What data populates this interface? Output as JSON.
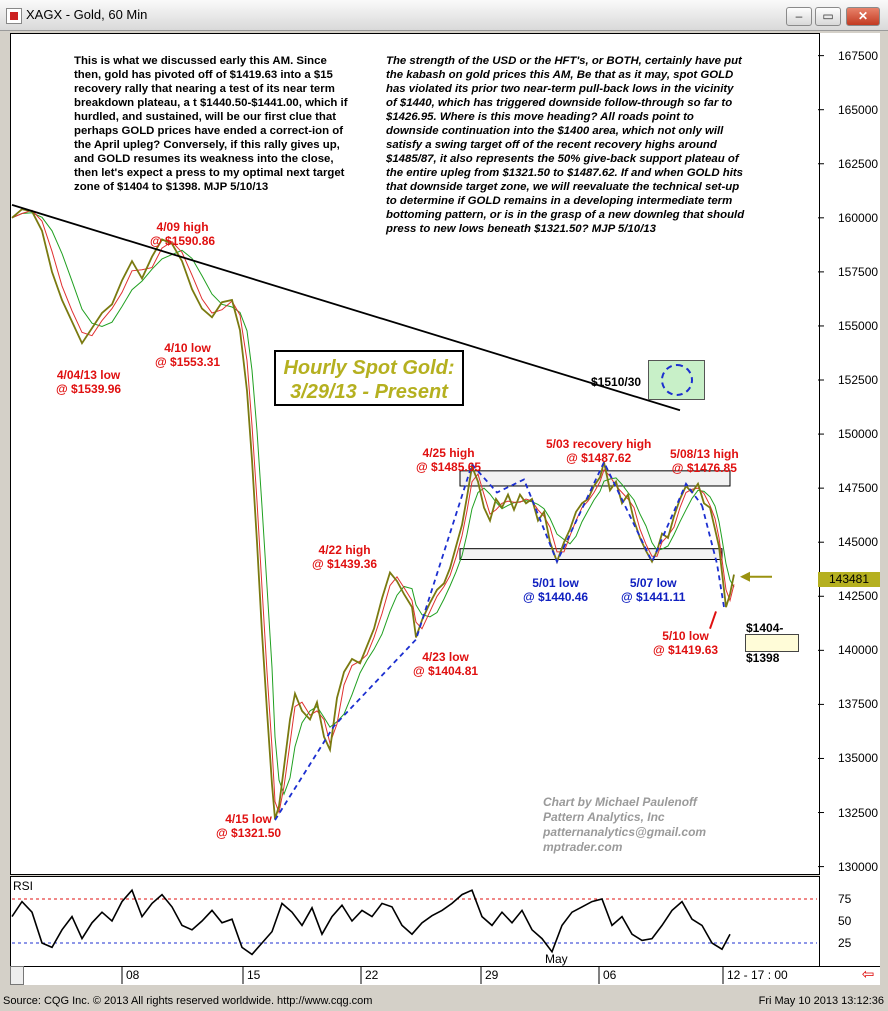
{
  "window": {
    "title": "XAGX - Gold, 60 Min",
    "buttons": {
      "minimize": "–",
      "restore": "▭",
      "close": "✕"
    },
    "mini_buttons": [
      "–",
      "▭",
      "✕"
    ]
  },
  "chart_data": {
    "type": "line",
    "title": "Hourly Spot Gold:",
    "subtitle": "3/29/13 - Present",
    "ylim": [
      1297.5,
      1685
    ],
    "y_ticks": [
      "167500",
      "165000",
      "162500",
      "160000",
      "157500",
      "155000",
      "152500",
      "150000",
      "147500",
      "145000",
      "142500",
      "140000",
      "137500",
      "135000",
      "132500",
      "130000"
    ],
    "y_tick_values": [
      1675,
      1650,
      1625,
      1600,
      1575,
      1550,
      1525,
      1500,
      1475,
      1450,
      1425,
      1400,
      1375,
      1350,
      1325,
      1300
    ],
    "x_labels": [
      "08",
      "15",
      "22",
      "29",
      "May",
      "06",
      "12 - 17 : 00"
    ],
    "last_price": "143481",
    "price_series": [
      [
        0,
        1600
      ],
      [
        10,
        1604
      ],
      [
        20,
        1603
      ],
      [
        30,
        1594
      ],
      [
        40,
        1575
      ],
      [
        50,
        1562
      ],
      [
        60,
        1552
      ],
      [
        70,
        1542
      ],
      [
        80,
        1549
      ],
      [
        90,
        1556
      ],
      [
        100,
        1560
      ],
      [
        110,
        1571
      ],
      [
        120,
        1580
      ],
      [
        130,
        1572
      ],
      [
        140,
        1582
      ],
      [
        150,
        1590
      ],
      [
        160,
        1588
      ],
      [
        170,
        1580
      ],
      [
        180,
        1567
      ],
      [
        190,
        1558
      ],
      [
        200,
        1554
      ],
      [
        210,
        1561
      ],
      [
        220,
        1562
      ],
      [
        228,
        1548
      ],
      [
        235,
        1520
      ],
      [
        240,
        1488
      ],
      [
        245,
        1450
      ],
      [
        250,
        1408
      ],
      [
        255,
        1372
      ],
      [
        260,
        1338
      ],
      [
        263,
        1322
      ],
      [
        267,
        1328
      ],
      [
        272,
        1346
      ],
      [
        278,
        1368
      ],
      [
        283,
        1380
      ],
      [
        290,
        1372
      ],
      [
        298,
        1368
      ],
      [
        305,
        1376
      ],
      [
        312,
        1360
      ],
      [
        318,
        1354
      ],
      [
        325,
        1378
      ],
      [
        332,
        1390
      ],
      [
        340,
        1396
      ],
      [
        348,
        1394
      ],
      [
        355,
        1402
      ],
      [
        362,
        1410
      ],
      [
        370,
        1424
      ],
      [
        378,
        1436
      ],
      [
        385,
        1432
      ],
      [
        392,
        1426
      ],
      [
        400,
        1420
      ],
      [
        404,
        1406
      ],
      [
        410,
        1414
      ],
      [
        418,
        1422
      ],
      [
        425,
        1428
      ],
      [
        432,
        1431
      ],
      [
        438,
        1438
      ],
      [
        444,
        1448
      ],
      [
        450,
        1458
      ],
      [
        455,
        1471
      ],
      [
        460,
        1485
      ],
      [
        466,
        1478
      ],
      [
        472,
        1466
      ],
      [
        478,
        1460
      ],
      [
        484,
        1470
      ],
      [
        490,
        1466
      ],
      [
        496,
        1472
      ],
      [
        502,
        1465
      ],
      [
        508,
        1472
      ],
      [
        514,
        1468
      ],
      [
        520,
        1470
      ],
      [
        526,
        1460
      ],
      [
        532,
        1464
      ],
      [
        538,
        1450
      ],
      [
        545,
        1441
      ],
      [
        552,
        1450
      ],
      [
        558,
        1456
      ],
      [
        564,
        1464
      ],
      [
        570,
        1468
      ],
      [
        576,
        1470
      ],
      [
        582,
        1476
      ],
      [
        588,
        1480
      ],
      [
        592,
        1487
      ],
      [
        598,
        1474
      ],
      [
        604,
        1478
      ],
      [
        610,
        1468
      ],
      [
        616,
        1472
      ],
      [
        622,
        1460
      ],
      [
        628,
        1452
      ],
      [
        634,
        1446
      ],
      [
        640,
        1441
      ],
      [
        645,
        1446
      ],
      [
        650,
        1454
      ],
      [
        656,
        1452
      ],
      [
        662,
        1462
      ],
      [
        668,
        1470
      ],
      [
        674,
        1476
      ],
      [
        680,
        1473
      ],
      [
        686,
        1477
      ],
      [
        692,
        1468
      ],
      [
        698,
        1466
      ],
      [
        703,
        1456
      ],
      [
        707,
        1448
      ],
      [
        710,
        1436
      ],
      [
        714,
        1420
      ],
      [
        718,
        1426
      ],
      [
        722,
        1435
      ]
    ],
    "resistance_line": {
      "from": [
        0,
        1606
      ],
      "to": [
        668,
        1511
      ]
    },
    "support_zone": [
      1442,
      1447
    ],
    "resistance_zone": [
      1476,
      1483
    ],
    "trend_dashes_blue": [
      [
        [
          263,
          1321.5
        ],
        [
          322,
          1365
        ],
        [
          404,
          1405
        ],
        [
          460,
          1486
        ]
      ],
      [
        [
          460,
          1486
        ],
        [
          485,
          1473
        ],
        [
          512,
          1479
        ],
        [
          545,
          1441
        ],
        [
          592,
          1487
        ],
        [
          640,
          1441
        ],
        [
          674,
          1477
        ],
        [
          690,
          1467
        ]
      ],
      [
        [
          690,
          1467
        ],
        [
          705,
          1440
        ],
        [
          712,
          1420
        ]
      ]
    ],
    "red_projection": [
      [
        704,
        1418
      ],
      [
        698,
        1410
      ]
    ],
    "arrow_price": 1434,
    "target_price": 1404,
    "rsi": {
      "ylim": [
        0,
        100
      ],
      "levels": [
        75,
        25
      ],
      "ticks": [
        "75",
        "50",
        "25"
      ],
      "tick_values": [
        75,
        50,
        25
      ],
      "series": [
        [
          0,
          55
        ],
        [
          10,
          72
        ],
        [
          20,
          60
        ],
        [
          30,
          25
        ],
        [
          40,
          20
        ],
        [
          50,
          40
        ],
        [
          60,
          55
        ],
        [
          70,
          30
        ],
        [
          80,
          48
        ],
        [
          90,
          60
        ],
        [
          100,
          50
        ],
        [
          110,
          72
        ],
        [
          120,
          85
        ],
        [
          130,
          55
        ],
        [
          140,
          70
        ],
        [
          150,
          80
        ],
        [
          160,
          66
        ],
        [
          170,
          45
        ],
        [
          180,
          40
        ],
        [
          190,
          50
        ],
        [
          200,
          62
        ],
        [
          210,
          48
        ],
        [
          220,
          52
        ],
        [
          230,
          20
        ],
        [
          240,
          12
        ],
        [
          250,
          25
        ],
        [
          260,
          38
        ],
        [
          270,
          70
        ],
        [
          280,
          60
        ],
        [
          290,
          45
        ],
        [
          300,
          65
        ],
        [
          310,
          35
        ],
        [
          320,
          55
        ],
        [
          330,
          68
        ],
        [
          340,
          50
        ],
        [
          350,
          62
        ],
        [
          360,
          55
        ],
        [
          370,
          70
        ],
        [
          380,
          66
        ],
        [
          390,
          45
        ],
        [
          400,
          35
        ],
        [
          410,
          48
        ],
        [
          420,
          56
        ],
        [
          430,
          62
        ],
        [
          440,
          70
        ],
        [
          450,
          80
        ],
        [
          460,
          85
        ],
        [
          470,
          55
        ],
        [
          480,
          45
        ],
        [
          490,
          60
        ],
        [
          500,
          48
        ],
        [
          510,
          62
        ],
        [
          520,
          40
        ],
        [
          530,
          30
        ],
        [
          540,
          15
        ],
        [
          550,
          45
        ],
        [
          560,
          60
        ],
        [
          570,
          66
        ],
        [
          580,
          72
        ],
        [
          590,
          75
        ],
        [
          600,
          45
        ],
        [
          610,
          55
        ],
        [
          620,
          35
        ],
        [
          630,
          28
        ],
        [
          640,
          30
        ],
        [
          650,
          45
        ],
        [
          660,
          62
        ],
        [
          670,
          72
        ],
        [
          680,
          52
        ],
        [
          690,
          45
        ],
        [
          700,
          25
        ],
        [
          710,
          18
        ],
        [
          718,
          35
        ]
      ]
    }
  },
  "notes": {
    "left": "This is what we discussed early this AM. Since then, gold has pivoted off of $1419.63 into a $15 recovery rally that nearing a test of its near term breakdown plateau, a t $1440.50-$1441.00, which if hurdled, and sustained, will be our first clue that perhaps GOLD prices have ended a correct-ion of the April upleg? Conversely, if this rally gives up, and GOLD resumes its weakness into the close, then let's expect a press to my optimal next target zone of $1404 to $1398.  MJP 5/10/13",
    "right": "The strength of the USD or the HFT's, or BOTH, certainly have put the kabash on gold prices this AM,  Be that as it may, spot GOLD has violated its prior two near-term pull-back lows in the vicinity of $1440, which has triggered downside follow-through so far to $1426.95. Where is this move heading? All roads point to downside continuation into the $1400 area, which not only will satisfy a swing target off of the recent recovery highs around $1485/87, it also represents the 50% give-back support plateau of the entire upleg from $1321.50 to $1487.62. If and when GOLD hits that downside target zone, we will reevaluate the technical set-up to determine if GOLD remains in a developing intermediate term bottoming pattern, or is in the grasp of a new downleg that should press to new lows beneath $1321.50? MJP  5/10/13"
  },
  "annotations": {
    "a409": "4/09 high\n@ $1590.86",
    "a404": "4/04/13 low\n@ $1539.96",
    "a410": "4/10 low\n@ $1553.31",
    "a415": "4/15 low\n@ $1321.50",
    "a422": "4/22 high\n@ $1439.36",
    "a423": "4/23 low\n@ $1404.81",
    "a425": "4/25 high\n@ $1485.65",
    "a503": "5/03 recovery high\n@ $1487.62",
    "a508": "5/08/13 high\n@ $1476.85",
    "a501": "5/01 low\n@ $1440.46",
    "a507": "5/07 low\n@ $1441.11",
    "a510": "5/10 low\n@ $1419.63",
    "a1510": "$1510/30",
    "target_top": "$1404-",
    "target_bottom": "$1398"
  },
  "credit": [
    "Chart by Michael Paulenoff",
    "Pattern Analytics, Inc",
    "patternanalytics@gmail.com",
    "mptrader.com"
  ],
  "rsi_label": "RSI",
  "footer": {
    "left": "Source: CQG Inc. © 2013 All rights reserved worldwide. http://www.cqg.com",
    "right": "Fri May 10 2013 13:12:36"
  },
  "colors": {
    "price": "#7a7a10",
    "ma1": "#e03030",
    "ma2": "#20a020",
    "trend": "#000000",
    "dashes": "#1c2fd0",
    "annot_red": "#e01010",
    "annot_blue": "#1020c0",
    "title_text": "#b5b020"
  }
}
